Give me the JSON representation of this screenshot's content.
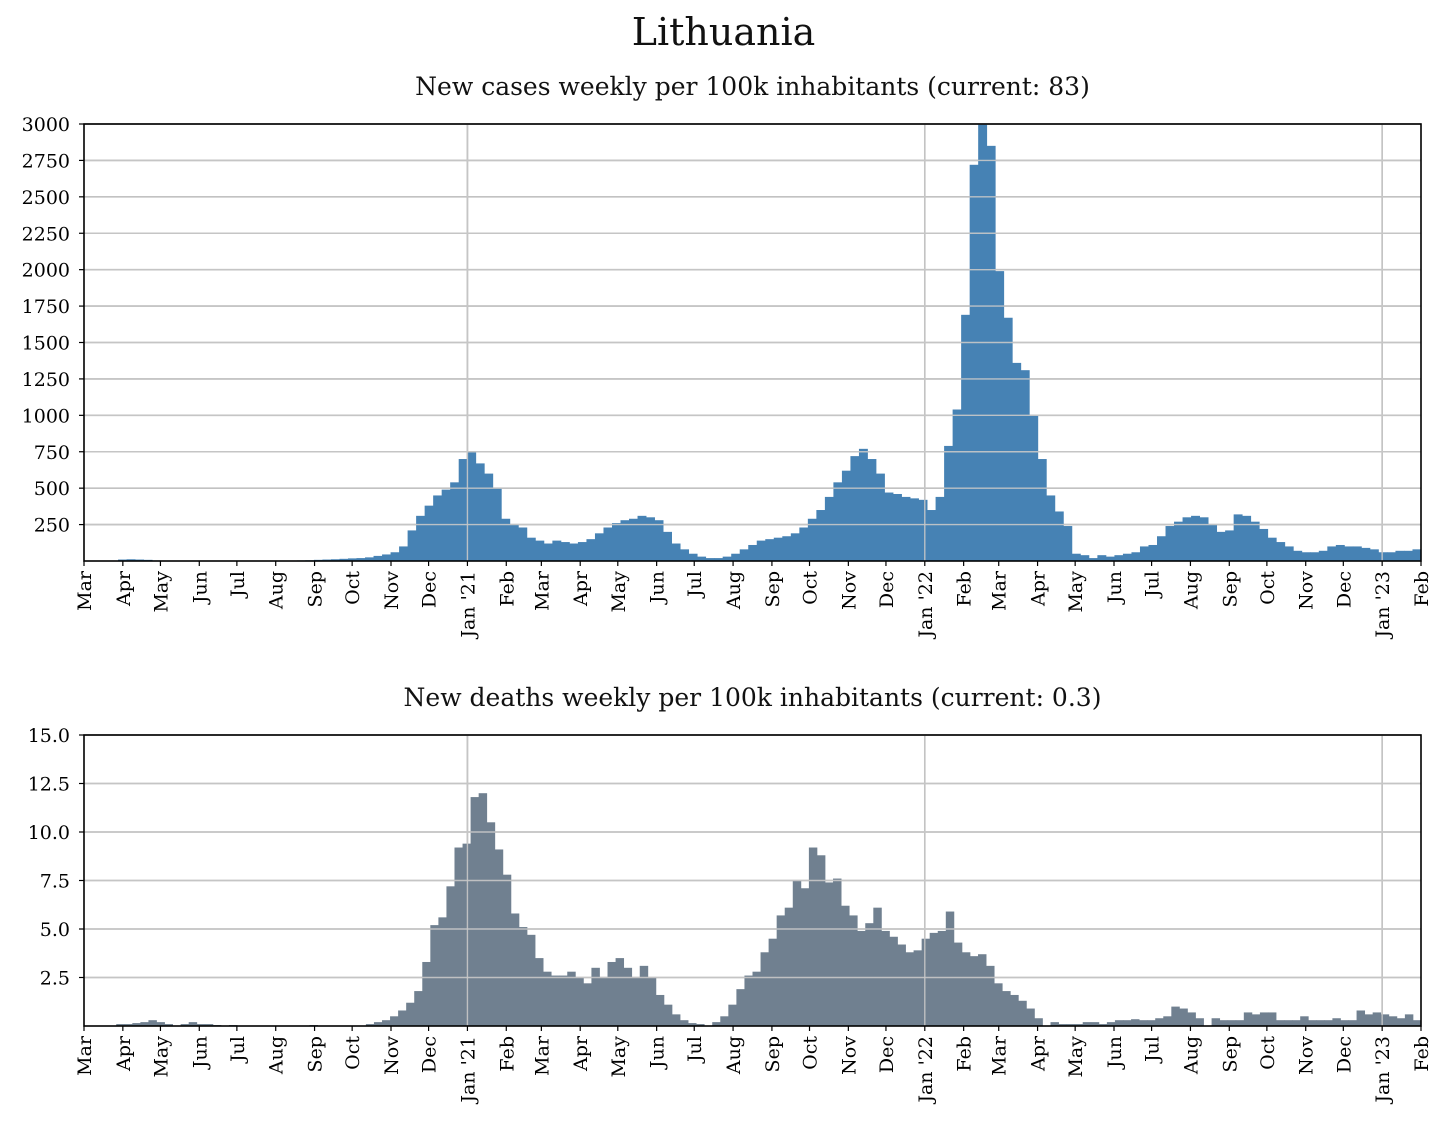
{
  "page_title": "Lithuania",
  "chart_data": [
    {
      "id": "cases",
      "type": "bar",
      "title": "New cases weekly per 100k inhabitants (current: 83)",
      "color": "#4682b4",
      "ylim": [
        0,
        3000
      ],
      "yticks": [
        250,
        500,
        750,
        1000,
        1250,
        1500,
        1750,
        2000,
        2250,
        2500,
        2750,
        3000
      ],
      "ytick_labels": [
        "250",
        "500",
        "750",
        "1000",
        "1250",
        "1500",
        "1750",
        "2000",
        "2250",
        "2500",
        "2750",
        "3000"
      ],
      "grid": true,
      "x_start": "2020-03-01",
      "x_end": "2023-02-01",
      "xtick_labels": [
        "Mar",
        "Apr",
        "May",
        "Jun",
        "Jul",
        "Aug",
        "Sep",
        "Oct",
        "Nov",
        "Dec",
        "Jan '21",
        "Feb",
        "Mar",
        "Apr",
        "May",
        "Jun",
        "Jul",
        "Aug",
        "Sep",
        "Oct",
        "Nov",
        "Dec",
        "Jan '22",
        "Feb",
        "Mar",
        "Apr",
        "May",
        "Jun",
        "Jul",
        "Aug",
        "Sep",
        "Oct",
        "Nov",
        "Dec",
        "Jan '23",
        "Feb"
      ],
      "year_lines": [
        "2021-01-01",
        "2022-01-01",
        "2023-01-01"
      ],
      "values": [
        0,
        0,
        0,
        0,
        10,
        12,
        10,
        8,
        4,
        2,
        1,
        1,
        1,
        1,
        1,
        1,
        1,
        1,
        1,
        2,
        2,
        2,
        2,
        3,
        3,
        4,
        5,
        8,
        10,
        12,
        15,
        18,
        20,
        25,
        35,
        45,
        60,
        100,
        210,
        310,
        380,
        450,
        490,
        540,
        700,
        750,
        670,
        600,
        500,
        290,
        250,
        230,
        160,
        140,
        120,
        140,
        130,
        120,
        130,
        150,
        190,
        230,
        260,
        280,
        290,
        310,
        300,
        280,
        200,
        120,
        80,
        50,
        30,
        20,
        20,
        30,
        50,
        80,
        110,
        140,
        150,
        160,
        170,
        190,
        230,
        290,
        350,
        440,
        540,
        620,
        720,
        770,
        700,
        600,
        470,
        460,
        440,
        430,
        420,
        350,
        440,
        790,
        1040,
        1690,
        2720,
        3000,
        2850,
        1990,
        1670,
        1360,
        1310,
        1000,
        700,
        450,
        340,
        240,
        50,
        40,
        20,
        40,
        30,
        40,
        50,
        60,
        100,
        110,
        170,
        240,
        270,
        300,
        310,
        300,
        250,
        200,
        210,
        320,
        310,
        270,
        220,
        160,
        130,
        100,
        70,
        60,
        60,
        70,
        100,
        110,
        100,
        100,
        90,
        80,
        60,
        60,
        70,
        70,
        80
      ]
    },
    {
      "id": "deaths",
      "type": "bar",
      "title": "New deaths weekly per 100k inhabitants (current: 0.3)",
      "color": "#708090",
      "ylim": [
        0,
        15
      ],
      "yticks": [
        2.5,
        5,
        7.5,
        10,
        12.5,
        15
      ],
      "ytick_labels": [
        "2.5",
        "5.0",
        "7.5",
        "10.0",
        "12.5",
        "15.0"
      ],
      "grid": true,
      "x_start": "2020-03-01",
      "x_end": "2023-02-01",
      "xtick_labels": [
        "Mar",
        "Apr",
        "May",
        "Jun",
        "Jul",
        "Aug",
        "Sep",
        "Oct",
        "Nov",
        "Dec",
        "Jan '21",
        "Feb",
        "Mar",
        "Apr",
        "May",
        "Jun",
        "Jul",
        "Aug",
        "Sep",
        "Oct",
        "Nov",
        "Dec",
        "Jan '22",
        "Feb",
        "Mar",
        "Apr",
        "May",
        "Jun",
        "Jul",
        "Aug",
        "Sep",
        "Oct",
        "Nov",
        "Dec",
        "Jan '23",
        "Feb"
      ],
      "year_lines": [
        "2021-01-01",
        "2022-01-01",
        "2023-01-01"
      ],
      "values": [
        0,
        0,
        0,
        0,
        0.1,
        0.1,
        0.15,
        0.2,
        0.3,
        0.2,
        0.1,
        0,
        0.1,
        0.2,
        0.1,
        0.1,
        0.05,
        0,
        0.05,
        0,
        0,
        0,
        0,
        0,
        0,
        0,
        0,
        0,
        0.05,
        0,
        0,
        0,
        0,
        0,
        0,
        0.1,
        0.2,
        0.3,
        0.5,
        0.8,
        1.2,
        1.8,
        3.3,
        5.2,
        5.6,
        7.2,
        9.2,
        9.4,
        11.8,
        12,
        10.5,
        9.1,
        7.8,
        5.8,
        5.1,
        4.7,
        3.5,
        2.8,
        2.6,
        2.6,
        2.8,
        2.5,
        2.2,
        3,
        2.5,
        3.3,
        3.5,
        3,
        2.5,
        3.1,
        2.5,
        1.6,
        1.1,
        0.6,
        0.3,
        0.15,
        0.1,
        0,
        0.2,
        0.5,
        1.1,
        1.9,
        2.6,
        2.8,
        3.8,
        4.5,
        5.7,
        6.1,
        7.5,
        7.1,
        9.2,
        8.8,
        7.4,
        7.6,
        6.2,
        5.7,
        4.9,
        5.3,
        6.1,
        4.9,
        4.6,
        4.2,
        3.8,
        3.9,
        4.5,
        4.8,
        4.9,
        5.9,
        4.3,
        3.8,
        3.6,
        3.7,
        3.1,
        2.2,
        1.8,
        1.6,
        1.3,
        0.9,
        0.4,
        0,
        0.2,
        0.1,
        0.1,
        0.1,
        0.2,
        0.2,
        0.1,
        0.2,
        0.3,
        0.3,
        0.35,
        0.3,
        0.3,
        0.4,
        0.5,
        1,
        0.9,
        0.7,
        0.4,
        0,
        0.4,
        0.3,
        0.3,
        0.3,
        0.7,
        0.6,
        0.7,
        0.7,
        0.3,
        0.3,
        0.3,
        0.5,
        0.3,
        0.3,
        0.3,
        0.4,
        0.3,
        0.3,
        0.8,
        0.6,
        0.7,
        0.6,
        0.5,
        0.4,
        0.6,
        0.3
      ]
    }
  ]
}
